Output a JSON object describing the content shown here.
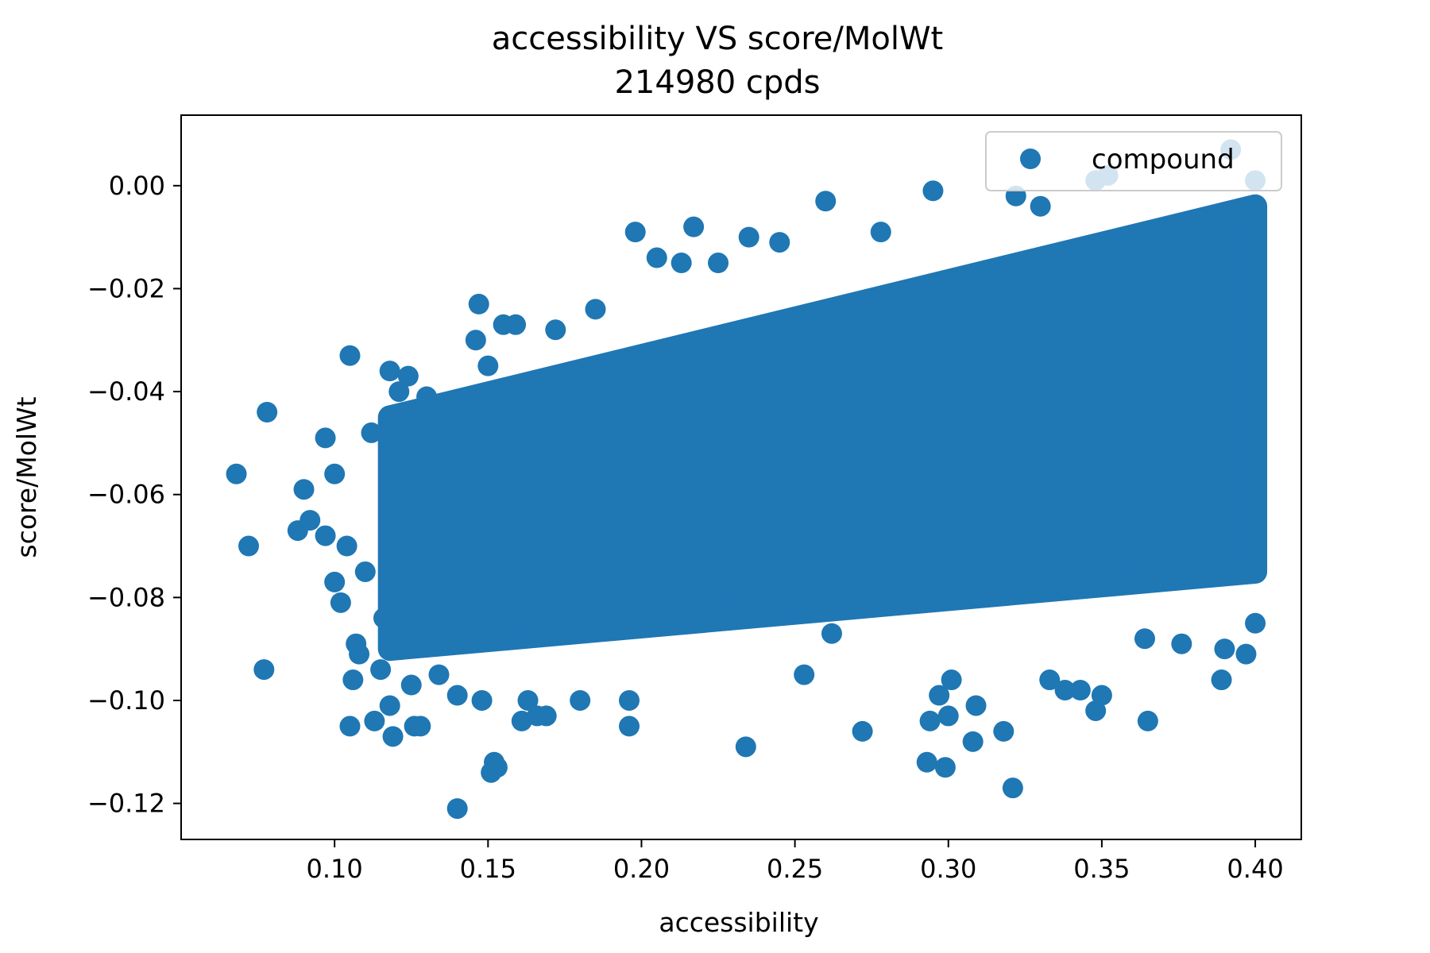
{
  "chart_data": {
    "type": "scatter",
    "title": "accessibility VS score/MolWt",
    "subtitle": "214980 cpds",
    "xlabel": "accessibility",
    "ylabel": "score/MolWt",
    "xlim": [
      0.05,
      0.415
    ],
    "ylim": [
      -0.127,
      0.0137
    ],
    "xticks": [
      0.1,
      0.15,
      0.2,
      0.25,
      0.3,
      0.35,
      0.4
    ],
    "xtick_labels": [
      "0.10",
      "0.15",
      "0.20",
      "0.25",
      "0.30",
      "0.35",
      "0.40"
    ],
    "yticks": [
      0.0,
      -0.02,
      -0.04,
      -0.06,
      -0.08,
      -0.1,
      -0.12
    ],
    "ytick_labels": [
      "0.00",
      "−0.02",
      "−0.04",
      "−0.06",
      "−0.08",
      "−0.10",
      "−0.12"
    ],
    "grid": false,
    "legend_position": "top-right",
    "color": "#1f77b4",
    "series": [
      {
        "name": "compound",
        "core_region": {
          "x_start": 0.118,
          "x_end": 0.4,
          "upper_start": -0.045,
          "upper_end": -0.004,
          "lower_start": -0.09,
          "lower_end": -0.075
        },
        "points": [
          {
            "x": 0.068,
            "y": -0.056
          },
          {
            "x": 0.072,
            "y": -0.07
          },
          {
            "x": 0.078,
            "y": -0.044
          },
          {
            "x": 0.077,
            "y": -0.094
          },
          {
            "x": 0.088,
            "y": -0.067
          },
          {
            "x": 0.09,
            "y": -0.059
          },
          {
            "x": 0.092,
            "y": -0.065
          },
          {
            "x": 0.097,
            "y": -0.049
          },
          {
            "x": 0.097,
            "y": -0.068
          },
          {
            "x": 0.1,
            "y": -0.056
          },
          {
            "x": 0.1,
            "y": -0.077
          },
          {
            "x": 0.102,
            "y": -0.081
          },
          {
            "x": 0.104,
            "y": -0.07
          },
          {
            "x": 0.105,
            "y": -0.033
          },
          {
            "x": 0.105,
            "y": -0.105
          },
          {
            "x": 0.106,
            "y": -0.096
          },
          {
            "x": 0.107,
            "y": -0.089
          },
          {
            "x": 0.108,
            "y": -0.091
          },
          {
            "x": 0.11,
            "y": -0.075
          },
          {
            "x": 0.112,
            "y": -0.048
          },
          {
            "x": 0.113,
            "y": -0.104
          },
          {
            "x": 0.115,
            "y": -0.094
          },
          {
            "x": 0.116,
            "y": -0.084
          },
          {
            "x": 0.118,
            "y": -0.036
          },
          {
            "x": 0.118,
            "y": -0.101
          },
          {
            "x": 0.119,
            "y": -0.107
          },
          {
            "x": 0.124,
            "y": -0.037
          },
          {
            "x": 0.125,
            "y": -0.097
          },
          {
            "x": 0.126,
            "y": -0.105
          },
          {
            "x": 0.128,
            "y": -0.105
          },
          {
            "x": 0.134,
            "y": -0.095
          },
          {
            "x": 0.14,
            "y": -0.121
          },
          {
            "x": 0.14,
            "y": -0.099
          },
          {
            "x": 0.146,
            "y": -0.03
          },
          {
            "x": 0.147,
            "y": -0.023
          },
          {
            "x": 0.148,
            "y": -0.1
          },
          {
            "x": 0.151,
            "y": -0.114
          },
          {
            "x": 0.152,
            "y": -0.112
          },
          {
            "x": 0.153,
            "y": -0.113
          },
          {
            "x": 0.155,
            "y": -0.027
          },
          {
            "x": 0.159,
            "y": -0.027
          },
          {
            "x": 0.161,
            "y": -0.104
          },
          {
            "x": 0.163,
            "y": -0.1
          },
          {
            "x": 0.166,
            "y": -0.103
          },
          {
            "x": 0.169,
            "y": -0.103
          },
          {
            "x": 0.18,
            "y": -0.1
          },
          {
            "x": 0.196,
            "y": -0.105
          },
          {
            "x": 0.196,
            "y": -0.1
          },
          {
            "x": 0.198,
            "y": -0.009
          },
          {
            "x": 0.217,
            "y": -0.008
          },
          {
            "x": 0.234,
            "y": -0.109
          },
          {
            "x": 0.235,
            "y": -0.01
          },
          {
            "x": 0.253,
            "y": -0.095
          },
          {
            "x": 0.26,
            "y": -0.003
          },
          {
            "x": 0.262,
            "y": -0.087
          },
          {
            "x": 0.272,
            "y": -0.106
          },
          {
            "x": 0.293,
            "y": -0.112
          },
          {
            "x": 0.294,
            "y": -0.104
          },
          {
            "x": 0.295,
            "y": -0.001
          },
          {
            "x": 0.297,
            "y": -0.099
          },
          {
            "x": 0.299,
            "y": -0.113
          },
          {
            "x": 0.3,
            "y": -0.103
          },
          {
            "x": 0.301,
            "y": -0.096
          },
          {
            "x": 0.308,
            "y": -0.108
          },
          {
            "x": 0.309,
            "y": -0.101
          },
          {
            "x": 0.318,
            "y": -0.106
          },
          {
            "x": 0.321,
            "y": -0.117
          },
          {
            "x": 0.333,
            "y": -0.096
          },
          {
            "x": 0.338,
            "y": -0.098
          },
          {
            "x": 0.343,
            "y": -0.098
          },
          {
            "x": 0.348,
            "y": -0.102
          },
          {
            "x": 0.35,
            "y": -0.099
          },
          {
            "x": 0.364,
            "y": -0.088
          },
          {
            "x": 0.365,
            "y": -0.104
          },
          {
            "x": 0.376,
            "y": -0.089
          },
          {
            "x": 0.389,
            "y": -0.096
          },
          {
            "x": 0.39,
            "y": -0.09
          },
          {
            "x": 0.392,
            "y": 0.007
          },
          {
            "x": 0.397,
            "y": -0.091
          },
          {
            "x": 0.4,
            "y": -0.085
          },
          {
            "x": 0.4,
            "y": 0.001
          },
          {
            "x": 0.348,
            "y": 0.001
          },
          {
            "x": 0.352,
            "y": 0.002
          },
          {
            "x": 0.33,
            "y": -0.004
          },
          {
            "x": 0.322,
            "y": -0.002
          },
          {
            "x": 0.205,
            "y": -0.014
          },
          {
            "x": 0.225,
            "y": -0.015
          },
          {
            "x": 0.213,
            "y": -0.015
          },
          {
            "x": 0.245,
            "y": -0.011
          },
          {
            "x": 0.278,
            "y": -0.009
          },
          {
            "x": 0.13,
            "y": -0.041
          },
          {
            "x": 0.121,
            "y": -0.04
          },
          {
            "x": 0.15,
            "y": -0.035
          },
          {
            "x": 0.172,
            "y": -0.028
          },
          {
            "x": 0.185,
            "y": -0.024
          }
        ]
      }
    ]
  }
}
